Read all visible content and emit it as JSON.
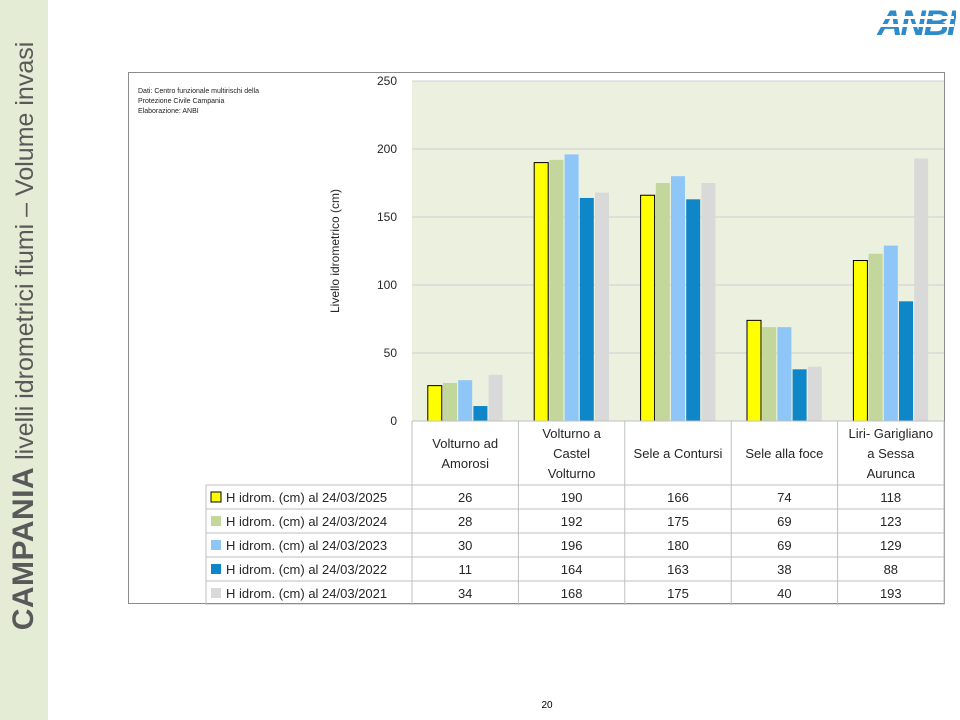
{
  "slide": {
    "side_title_bold": "CAMPANIA",
    "side_title_rest": " livelli idrometrici fiumi – Volume invasi",
    "logo_text": "ANBI",
    "page_number": "20",
    "source_lines": [
      "Dati: Centro funzionale multirischi della",
      "Protezione Civile Campania",
      "Elaborazione: ANBI"
    ]
  },
  "colors": {
    "side_band": "#e4ecd6",
    "plot_background": "#ebf1de",
    "logo_blue": "#2e8bc9"
  },
  "chart_data": {
    "type": "bar",
    "title": "",
    "xlabel": "",
    "ylabel": "Livello idrometrico (cm)",
    "ylim": [
      0,
      250
    ],
    "yticks": [
      0,
      50,
      100,
      150,
      200,
      250
    ],
    "grid": true,
    "legend": "data table",
    "categories": [
      [
        "Volturno ad",
        "Amorosi"
      ],
      [
        "Volturno a",
        "Castel",
        "Volturno"
      ],
      [
        "Sele a Contursi"
      ],
      [
        "Sele alla foce"
      ],
      [
        "Liri- Garigliano",
        "a Sessa",
        "Aurunca"
      ]
    ],
    "series": [
      {
        "name": "H idrom. (cm) al 24/03/2025",
        "color": "#ffff00",
        "outline": "#000000",
        "values": [
          26,
          190,
          166,
          74,
          118
        ]
      },
      {
        "name": "H idrom. (cm) al 24/03/2024",
        "color": "#c3d69b",
        "outline": "",
        "values": [
          28,
          192,
          175,
          69,
          123
        ]
      },
      {
        "name": "H idrom. (cm) al 24/03/2023",
        "color": "#8ec6f7",
        "outline": "",
        "values": [
          30,
          196,
          180,
          69,
          129
        ]
      },
      {
        "name": "H idrom. (cm) al 24/03/2022",
        "color": "#0e86c8",
        "outline": "",
        "values": [
          11,
          164,
          163,
          38,
          88
        ]
      },
      {
        "name": "H idrom. (cm) al 24/03/2021",
        "color": "#d9d9d9",
        "outline": "",
        "values": [
          34,
          168,
          175,
          40,
          193
        ]
      }
    ]
  }
}
